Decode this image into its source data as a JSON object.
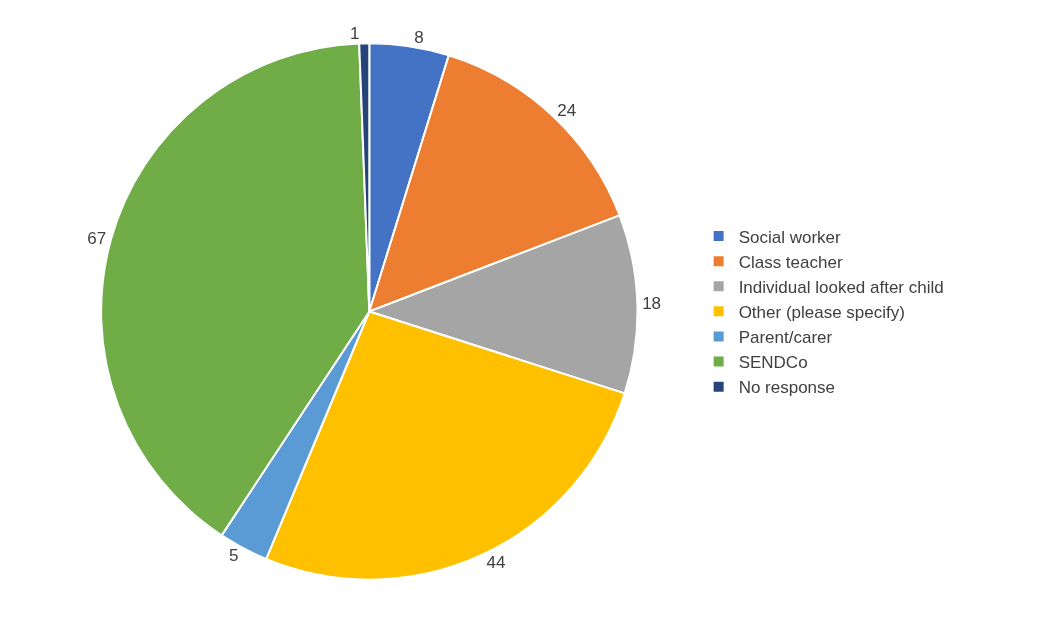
{
  "chart_data": {
    "type": "pie",
    "categories": [
      "Social worker",
      "Class teacher",
      "Individual looked after child",
      "Other (please specify)",
      "Parent/carer",
      "SENDCo",
      "No response"
    ],
    "values": [
      8,
      24,
      18,
      44,
      5,
      67,
      1
    ],
    "colors": [
      "#4472c4",
      "#ed7d31",
      "#a5a5a5",
      "#ffc000",
      "#5b9bd5",
      "#70ad47",
      "#264478"
    ],
    "data_labels": true,
    "legend": "right"
  }
}
